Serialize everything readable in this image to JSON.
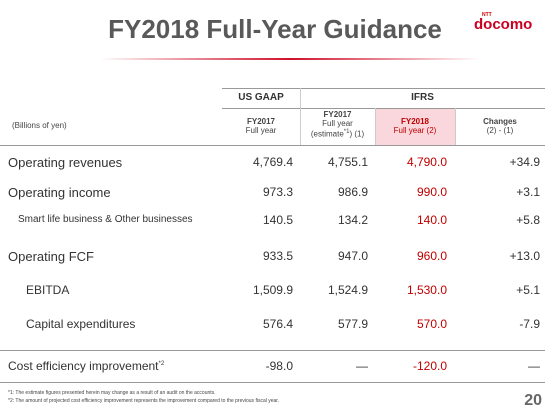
{
  "header": {
    "title": "FY2018 Full-Year Guidance",
    "logo_small": "NTT",
    "logo": "docomo"
  },
  "table": {
    "unit": "(Billions of yen)",
    "groups": [
      "US GAAP",
      "IFRS"
    ],
    "columns": [
      [
        "FY2017",
        "Full year"
      ],
      [
        "FY2017",
        "Full year",
        "(estimate",
        "*1",
        ") (1)"
      ],
      [
        "FY2018",
        "Full year (2)"
      ],
      [
        "Changes",
        "(2) - (1)"
      ]
    ],
    "rows": [
      [
        "Operating revenues",
        "4,769.4",
        "4,755.1",
        "4,790.0",
        "+34.9"
      ],
      [
        "Operating income",
        "973.3",
        "986.9",
        "990.0",
        "+3.1"
      ],
      [
        "Smart life business & Other businesses",
        "140.5",
        "134.2",
        "140.0",
        "+5.8"
      ],
      [
        "Operating FCF",
        "933.5",
        "947.0",
        "960.0",
        "+13.0"
      ],
      [
        "EBITDA",
        "1,509.9",
        "1,524.9",
        "1,530.0",
        "+5.1"
      ],
      [
        "Capital expenditures",
        "576.4",
        "577.9",
        "570.0",
        "-7.9"
      ]
    ],
    "cost_row": {
      "label": "Cost efficiency improvement",
      "sup": "*2",
      "values": [
        "-98.0",
        "—",
        "-120.0",
        "—"
      ]
    }
  },
  "footnotes": [
    "*1: The estimate figures presented herein may change as a result of an audit on the accounts.",
    "*2: The amount of projected cost efficiency improvement represents the improvement compared to the previous fiscal year."
  ],
  "page": "20"
}
